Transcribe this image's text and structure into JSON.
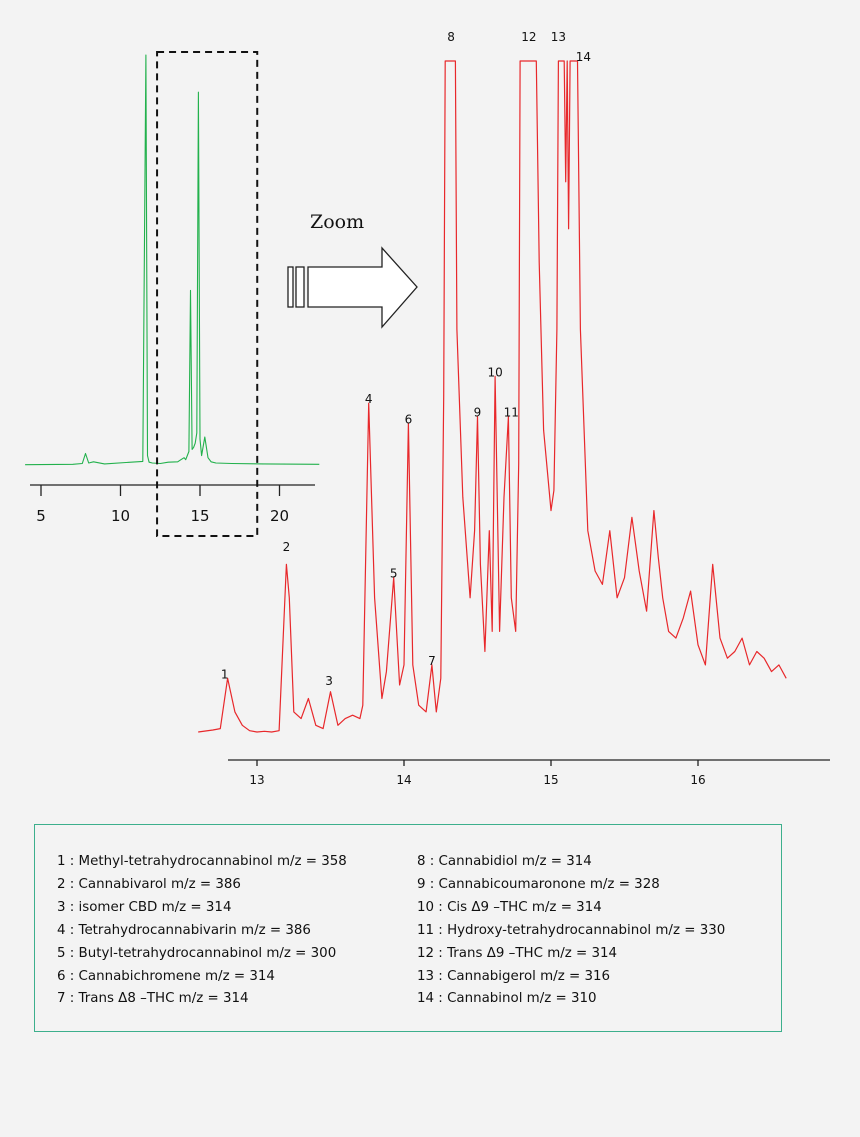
{
  "chart_data": [
    {
      "type": "line",
      "title": "",
      "xlabel": "",
      "ylabel": "",
      "color": "#22b14c",
      "xlim": [
        4,
        22.5
      ],
      "x_ticks": [
        5,
        10,
        15,
        20
      ],
      "grid": false,
      "zoom_window_x": [
        12.3,
        18.6
      ],
      "series": [
        {
          "x": [
            4,
            7,
            7.6,
            7.8,
            8,
            8.3,
            9,
            11.4,
            11.6,
            11.7,
            11.8,
            12,
            12.5,
            13,
            13.6,
            13.8,
            14,
            14.1,
            14.3,
            14.4,
            14.5,
            14.6,
            14.7,
            14.8,
            14.9,
            15,
            15.1,
            15.3,
            15.5,
            15.7,
            16,
            17,
            19,
            22.5
          ],
          "y": [
            0.008,
            0.009,
            0.011,
            0.035,
            0.012,
            0.015,
            0.01,
            0.016,
            1.0,
            0.03,
            0.014,
            0.012,
            0.011,
            0.014,
            0.015,
            0.02,
            0.025,
            0.02,
            0.04,
            0.43,
            0.045,
            0.05,
            0.06,
            0.085,
            0.91,
            0.07,
            0.03,
            0.075,
            0.025,
            0.015,
            0.012,
            0.011,
            0.01,
            0.009
          ]
        }
      ]
    },
    {
      "type": "line",
      "title": "",
      "xlabel": "",
      "ylabel": "",
      "color": "#e8282b",
      "xlim": [
        12.8,
        17.0
      ],
      "x_ticks": [
        13,
        14,
        15,
        16
      ],
      "grid": false,
      "peak_labels": [
        {
          "label": "1",
          "x": 12.78,
          "y": 0.08
        },
        {
          "label": "2",
          "x": 13.2,
          "y": 0.27
        },
        {
          "label": "3",
          "x": 13.49,
          "y": 0.07
        },
        {
          "label": "4",
          "x": 13.76,
          "y": 0.49
        },
        {
          "label": "5",
          "x": 13.93,
          "y": 0.23
        },
        {
          "label": "6",
          "x": 14.03,
          "y": 0.46
        },
        {
          "label": "7",
          "x": 14.19,
          "y": 0.1
        },
        {
          "label": "8",
          "x": 14.32,
          "y": 1.03
        },
        {
          "label": "9",
          "x": 14.5,
          "y": 0.47
        },
        {
          "label": "10",
          "x": 14.62,
          "y": 0.53
        },
        {
          "label": "11",
          "x": 14.73,
          "y": 0.47
        },
        {
          "label": "12",
          "x": 14.85,
          "y": 1.03
        },
        {
          "label": "13",
          "x": 15.05,
          "y": 1.03
        },
        {
          "label": "14",
          "x": 15.22,
          "y": 1.0
        }
      ],
      "series": [
        {
          "x": [
            12.6,
            12.7,
            12.75,
            12.8,
            12.85,
            12.9,
            12.95,
            13,
            13.05,
            13.1,
            13.15,
            13.2,
            13.22,
            13.25,
            13.3,
            13.35,
            13.4,
            13.45,
            13.5,
            13.55,
            13.6,
            13.65,
            13.7,
            13.72,
            13.76,
            13.8,
            13.85,
            13.88,
            13.93,
            13.97,
            14,
            14.03,
            14.06,
            14.1,
            14.15,
            14.19,
            14.22,
            14.25,
            14.27,
            14.28,
            14.35,
            14.36,
            14.4,
            14.45,
            14.48,
            14.5,
            14.52,
            14.55,
            14.58,
            14.6,
            14.62,
            14.65,
            14.68,
            14.71,
            14.73,
            14.76,
            14.78,
            14.79,
            14.9,
            14.92,
            14.95,
            15,
            15.02,
            15.04,
            15.05,
            15.09,
            15.1,
            15.11,
            15.12,
            15.13,
            15.18,
            15.2,
            15.25,
            15.3,
            15.35,
            15.4,
            15.45,
            15.5,
            15.55,
            15.6,
            15.65,
            15.7,
            15.73,
            15.76,
            15.8,
            15.85,
            15.9,
            15.95,
            16,
            16.05,
            16.1,
            16.15,
            16.2,
            16.25,
            16.3,
            16.35,
            16.4,
            16.45,
            16.5,
            16.55,
            16.6
          ],
          "y": [
            0.0,
            0.003,
            0.005,
            0.08,
            0.03,
            0.01,
            0.002,
            0.0,
            0.001,
            0.0,
            0.002,
            0.25,
            0.2,
            0.03,
            0.02,
            0.05,
            0.01,
            0.005,
            0.06,
            0.01,
            0.02,
            0.025,
            0.02,
            0.04,
            0.49,
            0.2,
            0.05,
            0.09,
            0.23,
            0.07,
            0.1,
            0.46,
            0.1,
            0.04,
            0.03,
            0.1,
            0.03,
            0.08,
            0.5,
            1.0,
            1.0,
            0.6,
            0.35,
            0.2,
            0.3,
            0.47,
            0.25,
            0.12,
            0.3,
            0.15,
            0.53,
            0.15,
            0.35,
            0.47,
            0.2,
            0.15,
            0.4,
            1.0,
            1.0,
            0.7,
            0.45,
            0.33,
            0.36,
            0.6,
            1.0,
            1.0,
            0.82,
            1.0,
            0.75,
            1.0,
            1.0,
            0.6,
            0.3,
            0.24,
            0.22,
            0.3,
            0.2,
            0.23,
            0.32,
            0.24,
            0.18,
            0.33,
            0.26,
            0.2,
            0.15,
            0.14,
            0.17,
            0.21,
            0.13,
            0.1,
            0.25,
            0.14,
            0.11,
            0.12,
            0.14,
            0.1,
            0.12,
            0.11,
            0.09,
            0.1,
            0.08
          ]
        }
      ]
    }
  ],
  "zoom": {
    "label": "Zoom"
  },
  "legend": {
    "left": [
      "1 : Methyl-tetrahydrocannabinol m/z =  358",
      "2 : Cannabivarol m/z = 386",
      "3 : isomer CBD m/z = 314",
      "4 : Tetrahydrocannabivarin m/z = 386",
      "5 : Butyl-tetrahydrocannabinol m/z = 300",
      "6 : Cannabichromene m/z = 314",
      "7 : Trans Δ8 –THC m/z = 314"
    ],
    "right": [
      "8 : Cannabidiol m/z = 314",
      "9 : Cannabicoumaronone m/z = 328",
      "10 : Cis Δ9 –THC m/z = 314",
      "11 : Hydroxy-tetrahydrocannabinol m/z = 330",
      "12 : Trans Δ9 –THC m/z = 314",
      "13 : Cannabigerol m/z = 316",
      "14 : Cannabinol m/z = 310"
    ]
  }
}
